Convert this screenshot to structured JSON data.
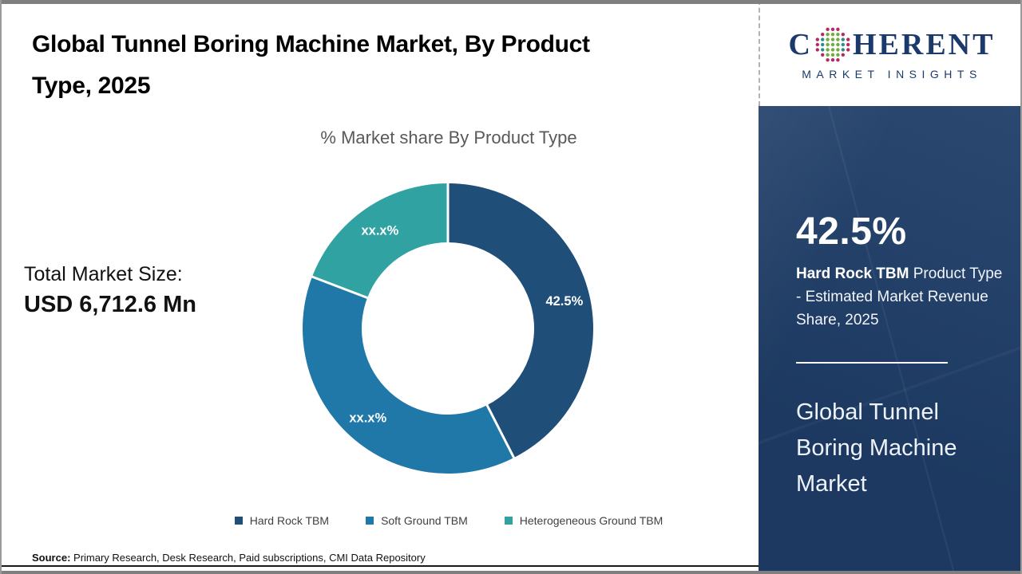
{
  "header": {
    "title": "Global Tunnel Boring Machine Market, By Product Type, 2025",
    "logo": {
      "word_start": "C",
      "word_end": "HERENT",
      "subtitle": "MARKET INSIGHTS",
      "navy": "#1B3A6B",
      "dot_green": "#6FAE3E",
      "dot_teal": "#2E8B8B",
      "dot_crimson": "#B52A63"
    }
  },
  "left_panel": {
    "total_label": "Total Market Size:",
    "total_value": "USD 6,712.6 Mn"
  },
  "chart_data": {
    "type": "pie",
    "donut": true,
    "title": "% Market share By Product Type",
    "categories": [
      "Hard Rock TBM",
      "Soft Ground TBM",
      "Heterogeneous Ground TBM"
    ],
    "values": [
      42.5,
      38.3,
      19.2
    ],
    "slice_labels": [
      "42.5%",
      "xx.x%",
      "xx.x%"
    ],
    "colors": [
      "#1F4E79",
      "#1F78A8",
      "#31A2A2"
    ],
    "start_angle_deg": 0,
    "legend_position": "bottom",
    "label_color": "#ffffff"
  },
  "sidebar": {
    "stat_value": "42.5%",
    "stat_bold": "Hard Rock TBM",
    "stat_rest": "  Product Type - Estimated Market Revenue Share, 2025",
    "market_name": "Global Tunnel Boring Machine Market",
    "background": "#1F3E69"
  },
  "footer": {
    "source_label": "Source:",
    "source_text": " Primary Research, Desk Research, Paid subscriptions, CMI Data Repository"
  }
}
